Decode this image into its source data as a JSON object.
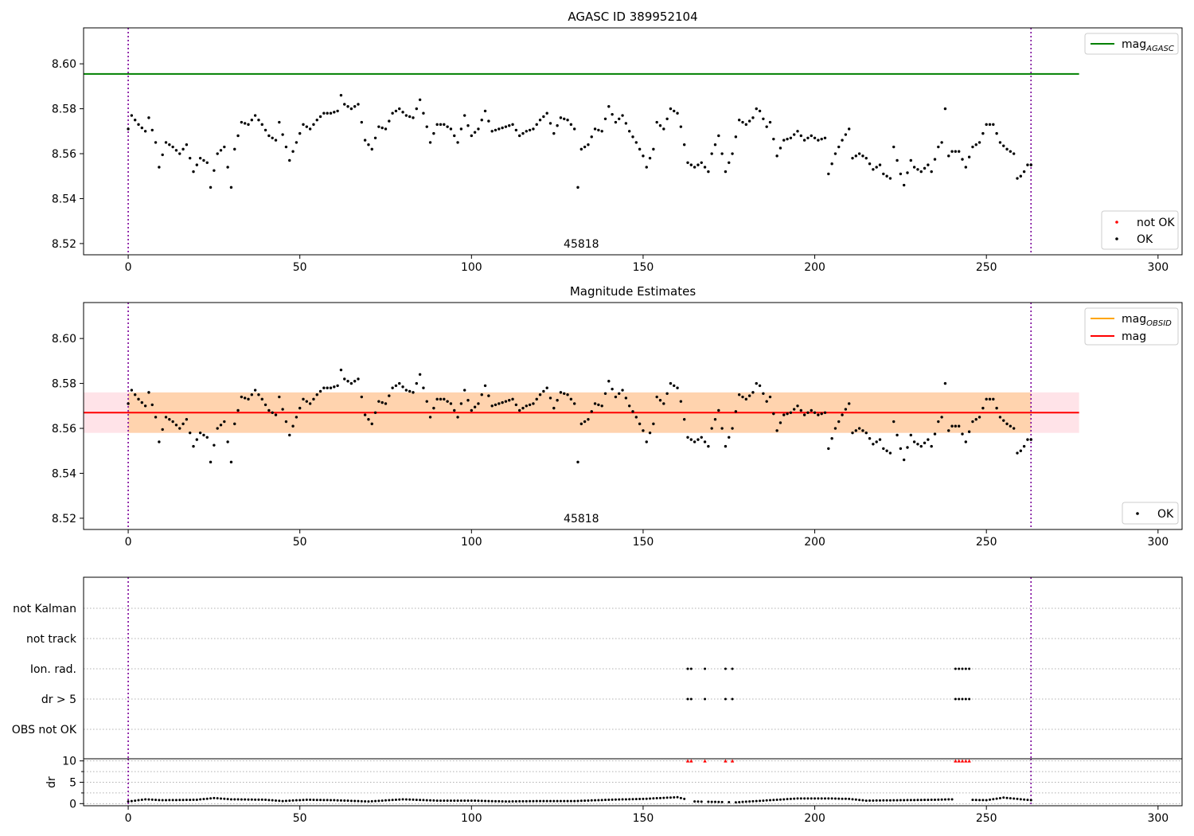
{
  "figure": {
    "panel1": {
      "title": "AGASC ID 389952104",
      "annotation": "45818",
      "legend_top": [
        {
          "label": "mag",
          "sub": "AGASC",
          "color": "#008000"
        }
      ],
      "legend_bottom": [
        {
          "label": "not OK",
          "color": "#ff0000"
        },
        {
          "label": "OK",
          "color": "#000000"
        }
      ]
    },
    "panel2": {
      "title": "Magnitude Estimates",
      "annotation": "45818",
      "legend_top": [
        {
          "label": "mag",
          "sub": "OBSID",
          "color": "#ffa500"
        },
        {
          "label": "mag",
          "sub": "",
          "color": "#ff0000"
        }
      ],
      "legend_bottom": [
        {
          "label": "OK",
          "color": "#000000"
        }
      ]
    },
    "panel3": {
      "flag_labels": [
        "not Kalman",
        "not track",
        "Ion. rad.",
        "dr > 5",
        "OBS not OK"
      ],
      "dr_ylabel": "dr"
    }
  },
  "chart_data": [
    {
      "type": "scatter",
      "panel": "AGASC ID 389952104",
      "xlim": [
        -13,
        307
      ],
      "ylim": [
        8.515,
        8.616
      ],
      "xticks": [
        0,
        50,
        100,
        150,
        200,
        250,
        300
      ],
      "yticks": [
        8.52,
        8.54,
        8.56,
        8.58,
        8.6
      ],
      "vlines": [
        0,
        263
      ],
      "mag_agasc": 8.5955,
      "mag_agasc_xrange": [
        -13,
        277
      ],
      "series": [
        {
          "name": "OK",
          "anchors": [
            [
              0,
              8.571
            ],
            [
              1,
              8.577
            ],
            [
              3,
              8.573
            ],
            [
              5,
              8.57
            ],
            [
              6,
              8.576
            ],
            [
              8,
              8.565
            ],
            [
              9,
              8.554
            ],
            [
              11,
              8.565
            ],
            [
              13,
              8.563
            ],
            [
              15,
              8.56
            ],
            [
              17,
              8.564
            ],
            [
              19,
              8.552
            ],
            [
              21,
              8.558
            ],
            [
              23,
              8.556
            ],
            [
              24,
              8.545
            ],
            [
              26,
              8.56
            ],
            [
              28,
              8.563
            ],
            [
              30,
              8.545
            ],
            [
              31,
              8.562
            ],
            [
              33,
              8.574
            ],
            [
              35,
              8.573
            ],
            [
              37,
              8.577
            ],
            [
              39,
              8.573
            ],
            [
              41,
              8.568
            ],
            [
              43,
              8.566
            ],
            [
              44,
              8.574
            ],
            [
              46,
              8.563
            ],
            [
              47,
              8.557
            ],
            [
              49,
              8.565
            ],
            [
              51,
              8.573
            ],
            [
              53,
              8.571
            ],
            [
              55,
              8.575
            ],
            [
              57,
              8.578
            ],
            [
              59,
              8.578
            ],
            [
              61,
              8.579
            ],
            [
              62,
              8.586
            ],
            [
              63,
              8.582
            ],
            [
              65,
              8.58
            ],
            [
              67,
              8.582
            ],
            [
              69,
              8.566
            ],
            [
              71,
              8.562
            ],
            [
              73,
              8.572
            ],
            [
              75,
              8.571
            ],
            [
              77,
              8.578
            ],
            [
              79,
              8.58
            ],
            [
              81,
              8.577
            ],
            [
              83,
              8.576
            ],
            [
              85,
              8.584
            ],
            [
              87,
              8.572
            ],
            [
              88,
              8.565
            ],
            [
              90,
              8.573
            ],
            [
              92,
              8.573
            ],
            [
              94,
              8.571
            ],
            [
              96,
              8.565
            ],
            [
              98,
              8.577
            ],
            [
              100,
              8.568
            ],
            [
              102,
              8.571
            ],
            [
              104,
              8.579
            ],
            [
              106,
              8.57
            ],
            [
              108,
              8.571
            ],
            [
              110,
              8.572
            ],
            [
              112,
              8.573
            ],
            [
              114,
              8.568
            ],
            [
              116,
              8.57
            ],
            [
              118,
              8.571
            ],
            [
              120,
              8.575
            ],
            [
              122,
              8.578
            ],
            [
              124,
              8.569
            ],
            [
              126,
              8.576
            ],
            [
              128,
              8.575
            ],
            [
              130,
              8.571
            ],
            [
              131,
              8.545
            ],
            [
              132,
              8.562
            ],
            [
              134,
              8.564
            ],
            [
              136,
              8.571
            ],
            [
              138,
              8.57
            ],
            [
              140,
              8.581
            ],
            [
              142,
              8.574
            ],
            [
              144,
              8.577
            ],
            [
              146,
              8.57
            ],
            [
              148,
              8.565
            ],
            [
              150,
              8.559
            ],
            [
              151,
              8.554
            ],
            [
              153,
              8.562
            ],
            [
              154,
              8.574
            ],
            [
              156,
              8.571
            ],
            [
              158,
              8.58
            ],
            [
              160,
              8.578
            ],
            [
              161,
              8.572
            ],
            [
              163,
              8.556
            ],
            [
              165,
              8.554
            ],
            [
              167,
              8.556
            ],
            [
              169,
              8.552
            ],
            [
              170,
              8.56
            ],
            [
              172,
              8.568
            ],
            [
              174,
              8.552
            ],
            [
              176,
              8.56
            ],
            [
              178,
              8.575
            ],
            [
              180,
              8.573
            ],
            [
              182,
              8.576
            ],
            [
              183,
              8.58
            ],
            [
              184,
              8.579
            ],
            [
              186,
              8.572
            ],
            [
              187,
              8.574
            ],
            [
              189,
              8.559
            ],
            [
              191,
              8.566
            ],
            [
              193,
              8.567
            ],
            [
              195,
              8.57
            ],
            [
              197,
              8.566
            ],
            [
              199,
              8.568
            ],
            [
              201,
              8.566
            ],
            [
              203,
              8.567
            ],
            [
              204,
              8.551
            ],
            [
              206,
              8.56
            ],
            [
              208,
              8.566
            ],
            [
              210,
              8.571
            ],
            [
              211,
              8.558
            ],
            [
              213,
              8.56
            ],
            [
              215,
              8.558
            ],
            [
              217,
              8.553
            ],
            [
              219,
              8.555
            ],
            [
              220,
              8.551
            ],
            [
              222,
              8.549
            ],
            [
              223,
              8.563
            ],
            [
              225,
              8.551
            ],
            [
              226,
              8.546
            ],
            [
              228,
              8.557
            ],
            [
              229,
              8.554
            ],
            [
              231,
              8.552
            ],
            [
              233,
              8.555
            ],
            [
              234,
              8.552
            ],
            [
              236,
              8.563
            ],
            [
              237,
              8.565
            ],
            [
              238,
              8.58
            ],
            [
              239,
              8.559
            ],
            [
              240,
              8.561
            ],
            [
              242,
              8.561
            ],
            [
              244,
              8.554
            ],
            [
              246,
              8.563
            ],
            [
              248,
              8.565
            ],
            [
              250,
              8.573
            ],
            [
              252,
              8.573
            ],
            [
              254,
              8.565
            ],
            [
              256,
              8.562
            ],
            [
              258,
              8.56
            ],
            [
              259,
              8.549
            ],
            [
              260,
              8.55
            ],
            [
              261,
              8.552
            ],
            [
              262,
              8.555
            ],
            [
              263,
              8.555
            ]
          ]
        },
        {
          "name": "not OK",
          "anchors": []
        }
      ]
    },
    {
      "type": "scatter",
      "panel": "Magnitude Estimates",
      "xlim": [
        -13,
        307
      ],
      "ylim": [
        8.515,
        8.616
      ],
      "xticks": [
        0,
        50,
        100,
        150,
        200,
        250,
        300
      ],
      "yticks": [
        8.52,
        8.54,
        8.56,
        8.58,
        8.6
      ],
      "vlines": [
        0,
        263
      ],
      "mag": 8.567,
      "band_outer": [
        8.558,
        8.576
      ],
      "band_outer_xrange": [
        -13,
        277
      ],
      "band_inner_xrange": [
        0,
        263
      ],
      "series": [
        {
          "name": "OK",
          "same_as_panel": 1
        }
      ]
    },
    {
      "type": "scatter",
      "panel": "flags",
      "xlim": [
        -13,
        307
      ],
      "flags": {
        "Ion. rad.": [
          163,
          164,
          168,
          174,
          176,
          241,
          242,
          243,
          244,
          245
        ],
        "dr > 5": [
          163,
          164,
          168,
          174,
          176,
          241,
          242,
          243,
          244,
          245
        ]
      }
    },
    {
      "type": "scatter",
      "panel": "dr",
      "xlim": [
        -13,
        307
      ],
      "ylim": [
        -0.5,
        10.5
      ],
      "xticks": [
        0,
        50,
        100,
        150,
        200,
        250,
        300
      ],
      "yticks": [
        0,
        5,
        10
      ],
      "minor_yticks": [
        2.5,
        7.5
      ],
      "vlines": [
        0,
        263
      ],
      "clipped_at_10": [
        163,
        164,
        168,
        174,
        176,
        241,
        242,
        243,
        244,
        245
      ],
      "dr_anchors": [
        [
          0,
          0.5
        ],
        [
          5,
          1.0
        ],
        [
          10,
          0.8
        ],
        [
          20,
          0.9
        ],
        [
          25,
          1.3
        ],
        [
          30,
          1.0
        ],
        [
          40,
          0.9
        ],
        [
          45,
          0.6
        ],
        [
          52,
          0.9
        ],
        [
          60,
          0.8
        ],
        [
          70,
          0.5
        ],
        [
          80,
          1.0
        ],
        [
          90,
          0.7
        ],
        [
          100,
          0.7
        ],
        [
          110,
          0.5
        ],
        [
          120,
          0.6
        ],
        [
          130,
          0.6
        ],
        [
          140,
          0.9
        ],
        [
          150,
          1.1
        ],
        [
          160,
          1.5
        ],
        [
          165,
          0.5
        ],
        [
          177,
          0.3
        ],
        [
          185,
          0.7
        ],
        [
          195,
          1.2
        ],
        [
          205,
          1.2
        ],
        [
          210,
          1.1
        ],
        [
          215,
          0.7
        ],
        [
          225,
          0.8
        ],
        [
          235,
          0.9
        ],
        [
          240,
          1.0
        ],
        [
          250,
          0.8
        ],
        [
          255,
          1.4
        ],
        [
          263,
          0.8
        ]
      ]
    }
  ]
}
